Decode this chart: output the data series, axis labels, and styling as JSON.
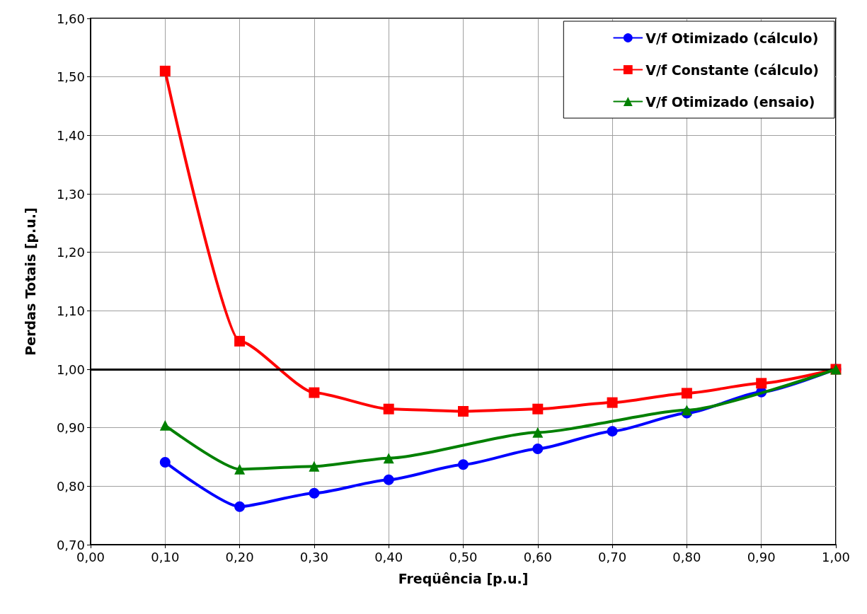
{
  "chart_data": {
    "type": "line",
    "xlabel": "Freqüência [p.u.]",
    "ylabel": "Perdas Totais [p.u.]",
    "xlim": [
      0,
      1
    ],
    "ylim": [
      0.7,
      1.6
    ],
    "xticks": [
      {
        "value": 0,
        "label": "0,00"
      },
      {
        "value": 0.1,
        "label": "0,10"
      },
      {
        "value": 0.2,
        "label": "0,20"
      },
      {
        "value": 0.3,
        "label": "0,30"
      },
      {
        "value": 0.4,
        "label": "0,40"
      },
      {
        "value": 0.5,
        "label": "0,50"
      },
      {
        "value": 0.6,
        "label": "0,60"
      },
      {
        "value": 0.7,
        "label": "0,70"
      },
      {
        "value": 0.8,
        "label": "0,80"
      },
      {
        "value": 0.9,
        "label": "0,90"
      },
      {
        "value": 1,
        "label": "1,00"
      }
    ],
    "yticks": [
      {
        "value": 0.7,
        "label": "0,70"
      },
      {
        "value": 0.8,
        "label": "0,80"
      },
      {
        "value": 0.9,
        "label": "0,90"
      },
      {
        "value": 1,
        "label": "1,00"
      },
      {
        "value": 1.1,
        "label": "1,10"
      },
      {
        "value": 1.2,
        "label": "1,20"
      },
      {
        "value": 1.3,
        "label": "1,30"
      },
      {
        "value": 1.4,
        "label": "1,40"
      },
      {
        "value": 1.5,
        "label": "1,50"
      },
      {
        "value": 1.6,
        "label": "1,60"
      }
    ],
    "grid": true,
    "legend": "top right",
    "line_style": "solid",
    "ref_lines": [
      {
        "axis": "y",
        "value": 1,
        "color": "#000000"
      }
    ],
    "series": [
      {
        "name": "V/f Otimizado (cálculo)",
        "color": "#0000ff",
        "marker": "circle",
        "x": [
          0.1,
          0.2,
          0.3,
          0.4,
          0.5,
          0.6,
          0.7,
          0.8,
          0.9,
          1.0
        ],
        "values": [
          0.841,
          0.765,
          0.788,
          0.811,
          0.837,
          0.864,
          0.894,
          0.925,
          0.961,
          1.0
        ]
      },
      {
        "name": "V/f Constante (cálculo)",
        "color": "#ff0000",
        "marker": "square",
        "x": [
          0.1,
          0.2,
          0.3,
          0.4,
          0.5,
          0.6,
          0.7,
          0.8,
          0.9,
          1.0
        ],
        "values": [
          1.51,
          1.048,
          0.96,
          0.932,
          0.928,
          0.932,
          0.943,
          0.959,
          0.976,
          1.0
        ]
      },
      {
        "name": "V/f Otimizado (ensaio)",
        "color": "#008000",
        "marker": "triangle",
        "x": [
          0.1,
          0.2,
          0.3,
          0.4,
          0.6,
          0.8,
          1.0
        ],
        "values": [
          0.904,
          0.829,
          0.834,
          0.848,
          0.892,
          0.93,
          1.0
        ]
      }
    ]
  }
}
